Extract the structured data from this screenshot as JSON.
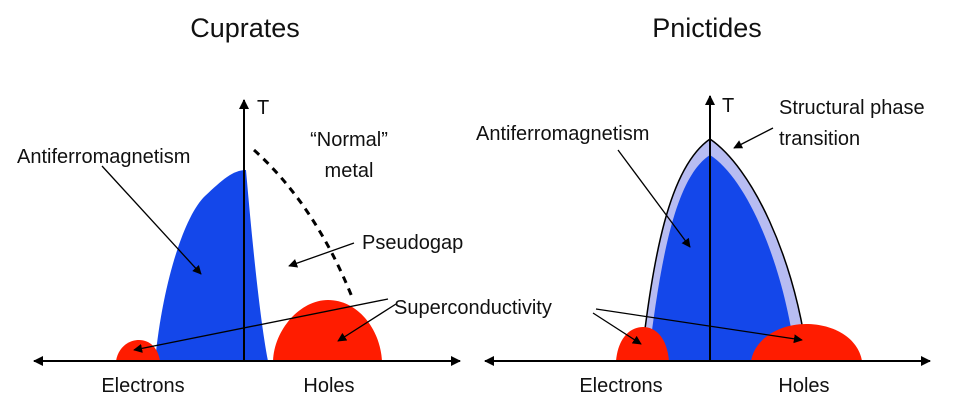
{
  "colors": {
    "antiferromagnetism": "#1447ea",
    "superconductivity": "#ff1c00",
    "structural_transition": "#b7bcf2",
    "axis": "#000000"
  },
  "cuprates": {
    "title": "Cuprates",
    "axis_t": "T",
    "electrons": "Electrons",
    "holes": "Holes",
    "antiferromagnetism": "Antiferromagnetism",
    "normal_metal_line1": "“Normal”",
    "normal_metal_line2": "metal",
    "pseudogap": "Pseudogap",
    "superconductivity": "Superconductivity"
  },
  "pnictides": {
    "title": "Pnictides",
    "axis_t": "T",
    "electrons": "Electrons",
    "holes": "Holes",
    "antiferromagnetism": "Antiferromagnetism",
    "structural_line1": "Structural phase",
    "structural_line2": "transition"
  }
}
